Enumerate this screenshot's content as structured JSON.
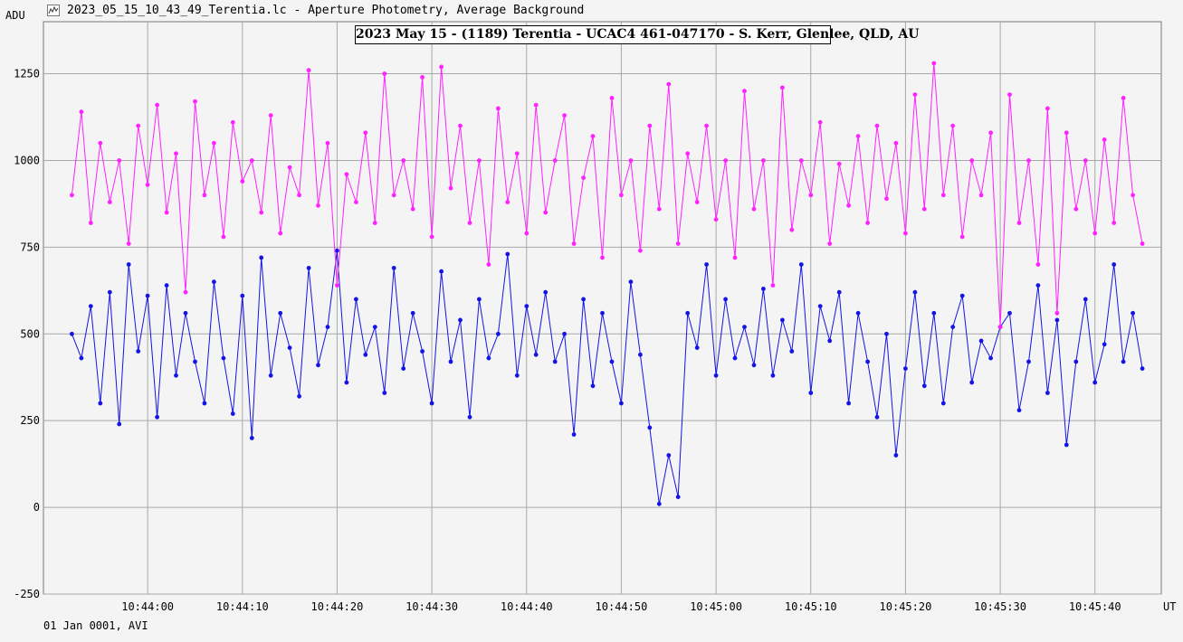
{
  "window": {
    "title": "2023_05_15_10_43_49_Terentia.lc - Aperture Photometry, Average Background",
    "app_icon": "chart-icon"
  },
  "footer": {
    "label": "01 Jan 0001, AVI"
  },
  "chart_data": {
    "type": "line",
    "title": "2023 May 15 - (1189) Terentia - UCAC4 461-047170 - S. Kerr, Glenlee, QLD, AU",
    "ylabel": "ADU",
    "xlabel": "UT",
    "ylim": [
      -250,
      1400
    ],
    "yticks": [
      -250,
      0,
      250,
      500,
      750,
      1000,
      1250
    ],
    "xticks": [
      "10:44:00",
      "10:44:10",
      "10:44:20",
      "10:44:30",
      "10:44:40",
      "10:44:50",
      "10:45:00",
      "10:45:10",
      "10:45:20",
      "10:45:30",
      "10:45:40"
    ],
    "grid": true,
    "colors": {
      "target": "#1414e6",
      "comparison": "#ff22ff"
    },
    "series": [
      {
        "key": "target",
        "color": "#1414e6",
        "x": [
          "10:43:52",
          "10:43:53",
          "10:43:54",
          "10:43:55",
          "10:43:56",
          "10:43:57",
          "10:43:58",
          "10:43:59",
          "10:44:00",
          "10:44:01",
          "10:44:02",
          "10:44:03",
          "10:44:04",
          "10:44:05",
          "10:44:06",
          "10:44:07",
          "10:44:08",
          "10:44:09",
          "10:44:10",
          "10:44:11",
          "10:44:12",
          "10:44:13",
          "10:44:14",
          "10:44:15",
          "10:44:16",
          "10:44:17",
          "10:44:18",
          "10:44:19",
          "10:44:20",
          "10:44:21",
          "10:44:22",
          "10:44:23",
          "10:44:24",
          "10:44:25",
          "10:44:26",
          "10:44:27",
          "10:44:28",
          "10:44:29",
          "10:44:30",
          "10:44:31",
          "10:44:32",
          "10:44:33",
          "10:44:34",
          "10:44:35",
          "10:44:36",
          "10:44:37",
          "10:44:38",
          "10:44:39",
          "10:44:40",
          "10:44:41",
          "10:44:42",
          "10:44:43",
          "10:44:44",
          "10:44:45",
          "10:44:46",
          "10:44:47",
          "10:44:48",
          "10:44:49",
          "10:44:50",
          "10:44:51",
          "10:44:52",
          "10:44:53",
          "10:44:54",
          "10:44:55",
          "10:44:56",
          "10:44:57",
          "10:44:58",
          "10:44:59",
          "10:45:00",
          "10:45:01",
          "10:45:02",
          "10:45:03",
          "10:45:04",
          "10:45:05",
          "10:45:06",
          "10:45:07",
          "10:45:08",
          "10:45:09",
          "10:45:10",
          "10:45:11",
          "10:45:12",
          "10:45:13",
          "10:45:14",
          "10:45:15",
          "10:45:16",
          "10:45:17",
          "10:45:18",
          "10:45:19",
          "10:45:20",
          "10:45:21",
          "10:45:22",
          "10:45:23",
          "10:45:24",
          "10:45:25",
          "10:45:26",
          "10:45:27",
          "10:45:28",
          "10:45:29",
          "10:45:30",
          "10:45:31",
          "10:45:32",
          "10:45:33",
          "10:45:34",
          "10:45:35",
          "10:45:36",
          "10:45:37",
          "10:45:38",
          "10:45:39",
          "10:45:40",
          "10:45:41",
          "10:45:42",
          "10:45:43",
          "10:45:44",
          "10:45:45"
        ],
        "values": [
          500,
          430,
          580,
          300,
          620,
          240,
          700,
          450,
          610,
          260,
          640,
          380,
          560,
          420,
          300,
          650,
          430,
          270,
          610,
          200,
          720,
          380,
          560,
          460,
          320,
          690,
          410,
          520,
          740,
          360,
          600,
          440,
          520,
          330,
          690,
          400,
          560,
          450,
          300,
          680,
          420,
          540,
          260,
          600,
          430,
          500,
          730,
          380,
          580,
          440,
          620,
          420,
          500,
          210,
          600,
          350,
          560,
          420,
          300,
          650,
          440,
          230,
          10,
          150,
          30,
          560,
          460,
          700,
          380,
          600,
          430,
          520,
          410,
          630,
          380,
          540,
          450,
          700,
          330,
          580,
          480,
          620,
          300,
          560,
          420,
          260,
          500,
          150,
          400,
          620,
          350,
          560,
          300,
          520,
          610,
          360,
          480,
          430,
          520,
          560,
          280,
          420,
          640,
          330,
          540,
          180,
          420,
          600,
          360,
          470,
          700,
          420,
          560,
          400
        ]
      },
      {
        "key": "comparison",
        "color": "#ff22ff",
        "x": [
          "10:43:52",
          "10:43:53",
          "10:43:54",
          "10:43:55",
          "10:43:56",
          "10:43:57",
          "10:43:58",
          "10:43:59",
          "10:44:00",
          "10:44:01",
          "10:44:02",
          "10:44:03",
          "10:44:04",
          "10:44:05",
          "10:44:06",
          "10:44:07",
          "10:44:08",
          "10:44:09",
          "10:44:10",
          "10:44:11",
          "10:44:12",
          "10:44:13",
          "10:44:14",
          "10:44:15",
          "10:44:16",
          "10:44:17",
          "10:44:18",
          "10:44:19",
          "10:44:20",
          "10:44:21",
          "10:44:22",
          "10:44:23",
          "10:44:24",
          "10:44:25",
          "10:44:26",
          "10:44:27",
          "10:44:28",
          "10:44:29",
          "10:44:30",
          "10:44:31",
          "10:44:32",
          "10:44:33",
          "10:44:34",
          "10:44:35",
          "10:44:36",
          "10:44:37",
          "10:44:38",
          "10:44:39",
          "10:44:40",
          "10:44:41",
          "10:44:42",
          "10:44:43",
          "10:44:44",
          "10:44:45",
          "10:44:46",
          "10:44:47",
          "10:44:48",
          "10:44:49",
          "10:44:50",
          "10:44:51",
          "10:44:52",
          "10:44:53",
          "10:44:54",
          "10:44:55",
          "10:44:56",
          "10:44:57",
          "10:44:58",
          "10:44:59",
          "10:45:00",
          "10:45:01",
          "10:45:02",
          "10:45:03",
          "10:45:04",
          "10:45:05",
          "10:45:06",
          "10:45:07",
          "10:45:08",
          "10:45:09",
          "10:45:10",
          "10:45:11",
          "10:45:12",
          "10:45:13",
          "10:45:14",
          "10:45:15",
          "10:45:16",
          "10:45:17",
          "10:45:18",
          "10:45:19",
          "10:45:20",
          "10:45:21",
          "10:45:22",
          "10:45:23",
          "10:45:24",
          "10:45:25",
          "10:45:26",
          "10:45:27",
          "10:45:28",
          "10:45:29",
          "10:45:30",
          "10:45:31",
          "10:45:32",
          "10:45:33",
          "10:45:34",
          "10:45:35",
          "10:45:36",
          "10:45:37",
          "10:45:38",
          "10:45:39",
          "10:45:40",
          "10:45:41",
          "10:45:42",
          "10:45:43",
          "10:45:44",
          "10:45:45"
        ],
        "values": [
          900,
          1140,
          820,
          1050,
          880,
          1000,
          760,
          1100,
          930,
          1160,
          850,
          1020,
          620,
          1170,
          900,
          1050,
          780,
          1110,
          940,
          1000,
          850,
          1130,
          790,
          980,
          900,
          1260,
          870,
          1050,
          640,
          960,
          880,
          1080,
          820,
          1250,
          900,
          1000,
          860,
          1240,
          780,
          1270,
          920,
          1100,
          820,
          1000,
          700,
          1150,
          880,
          1020,
          790,
          1160,
          850,
          1000,
          1130,
          760,
          950,
          1070,
          720,
          1180,
          900,
          1000,
          740,
          1100,
          860,
          1220,
          760,
          1020,
          880,
          1100,
          830,
          1000,
          720,
          1200,
          860,
          1000,
          640,
          1210,
          800,
          1000,
          900,
          1110,
          760,
          990,
          870,
          1070,
          820,
          1100,
          890,
          1050,
          790,
          1190,
          860,
          1280,
          900,
          1100,
          780,
          1000,
          900,
          1080,
          520,
          1190,
          820,
          1000,
          700,
          1150,
          560,
          1080,
          860,
          1000,
          790,
          1060,
          820,
          1180,
          900,
          760
        ]
      }
    ]
  }
}
